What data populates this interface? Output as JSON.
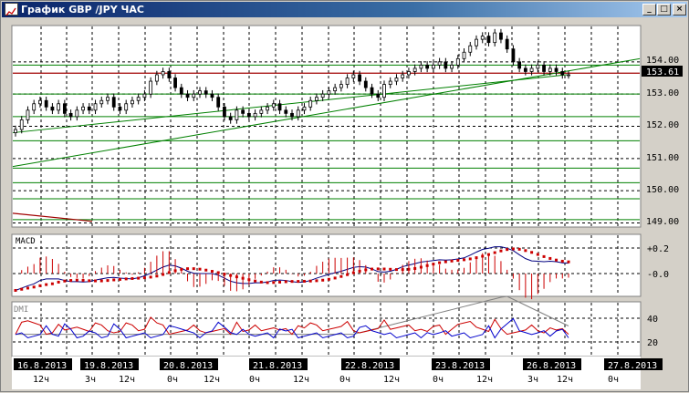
{
  "window": {
    "title": "График GBP /JPY ЧАС",
    "controls": {
      "minimize": "_",
      "maximize": "□",
      "close": "×"
    }
  },
  "colors": {
    "price_bar": "#00aa00",
    "candle": "#000000",
    "trend_line": "#008000",
    "resistance_line": "#a00000",
    "current_price_label_bg": "#000000",
    "macd_line": "#000080",
    "signal_line": "#cc0000",
    "histogram": "#cc0000",
    "dmi_plus": "#cc0000",
    "dmi_minus": "#0000cc",
    "adx": "#808080",
    "grid": "#000000",
    "horizontal_level": "#008000"
  },
  "price_panel": {
    "y_axis_labels": [
      "154.00",
      "153.00",
      "152.00",
      "151.00",
      "150.00",
      "149.00"
    ],
    "current_price": "153.61"
  },
  "macd_panel": {
    "label": "MACD",
    "y_axis_labels": [
      "+0.2",
      "-0.0"
    ]
  },
  "dmi_panel": {
    "label": "DMI",
    "y_axis_labels": [
      "40",
      "20"
    ]
  },
  "time_axis": {
    "dates": [
      "16.8.2013",
      "19.8.2013",
      "20.8.2013",
      "21.8.2013",
      "22.8.2013",
      "23.8.2013",
      "26.8.2013",
      "27.8.2013"
    ],
    "hours": [
      "12ч",
      "3ч",
      "12ч",
      "0ч",
      "12ч",
      "0ч",
      "12ч",
      "0ч",
      "12ч",
      "0ч",
      "12ч",
      "3ч",
      "12ч",
      "0ч"
    ]
  },
  "chart_data": {
    "type": "candlestick",
    "title": "",
    "instrument": "GBP/JPY",
    "timeframe": "",
    "ylim": [
      148.9,
      155.1
    ],
    "series": [
      {
        "values": [
          151.9,
          152.2,
          152.5,
          152.7,
          152.8,
          152.6,
          152.5,
          152.7,
          152.4,
          152.3,
          152.5,
          152.6,
          152.5,
          152.7,
          152.8,
          152.9,
          152.6,
          152.5,
          152.7,
          152.8,
          152.9,
          153.0,
          153.4,
          153.6,
          153.7,
          153.5,
          153.2,
          153.0,
          152.9,
          153.0,
          153.1,
          153.0,
          152.9,
          152.6,
          152.3,
          152.2,
          152.5,
          152.4,
          152.3,
          152.4,
          152.5,
          152.6,
          152.7,
          152.5,
          152.4,
          152.3,
          152.5,
          152.6,
          152.8,
          152.9,
          153.0,
          153.1,
          153.2,
          153.3,
          153.5,
          153.6,
          153.4,
          153.2,
          153.0,
          152.9,
          153.3,
          153.4,
          153.5,
          153.6,
          153.7,
          153.8,
          153.9,
          153.8,
          153.9,
          154.0,
          153.8,
          153.9,
          154.1,
          154.3,
          154.5,
          154.7,
          154.8,
          154.6,
          154.9,
          154.7,
          154.4,
          154.0,
          153.8,
          153.7,
          153.8,
          153.9,
          153.7,
          153.8,
          153.7,
          153.6,
          153.6
        ]
      }
    ]
  }
}
